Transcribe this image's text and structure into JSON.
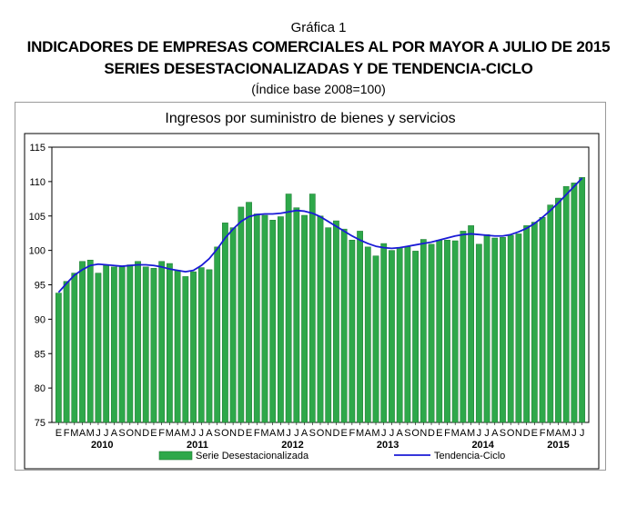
{
  "header": {
    "figure_label": "Gráfica 1",
    "title": "INDICADORES DE EMPRESAS COMERCIALES AL POR MAYOR A JULIO DE 2015",
    "subtitle": "SERIES DESESTACIONALIZADAS Y DE TENDENCIA-CICLO",
    "note": "(Índice base 2008=100)"
  },
  "chart_data": {
    "type": "bar",
    "title": "Ingresos por suministro de bienes y servicios",
    "ylim": [
      75,
      115
    ],
    "yticks": [
      75,
      80,
      85,
      90,
      95,
      100,
      105,
      110,
      115
    ],
    "grid": false,
    "legend_position": "bottom",
    "month_labels": [
      "E",
      "F",
      "M",
      "A",
      "M",
      "J",
      "J",
      "A",
      "S",
      "O",
      "N",
      "D"
    ],
    "years": [
      "2010",
      "2011",
      "2012",
      "2013",
      "2014",
      "2015"
    ],
    "bar_color": "#2ea84a",
    "line_color": "#1a1ad6",
    "categories": [
      "2010-01",
      "2010-02",
      "2010-03",
      "2010-04",
      "2010-05",
      "2010-06",
      "2010-07",
      "2010-08",
      "2010-09",
      "2010-10",
      "2010-11",
      "2010-12",
      "2011-01",
      "2011-02",
      "2011-03",
      "2011-04",
      "2011-05",
      "2011-06",
      "2011-07",
      "2011-08",
      "2011-09",
      "2011-10",
      "2011-11",
      "2011-12",
      "2012-01",
      "2012-02",
      "2012-03",
      "2012-04",
      "2012-05",
      "2012-06",
      "2012-07",
      "2012-08",
      "2012-09",
      "2012-10",
      "2012-11",
      "2012-12",
      "2013-01",
      "2013-02",
      "2013-03",
      "2013-04",
      "2013-05",
      "2013-06",
      "2013-07",
      "2013-08",
      "2013-09",
      "2013-10",
      "2013-11",
      "2013-12",
      "2014-01",
      "2014-02",
      "2014-03",
      "2014-04",
      "2014-05",
      "2014-06",
      "2014-07",
      "2014-08",
      "2014-09",
      "2014-10",
      "2014-11",
      "2014-12",
      "2015-01",
      "2015-02",
      "2015-03",
      "2015-04",
      "2015-05",
      "2015-06",
      "2015-07"
    ],
    "series": [
      {
        "name": "Serie Desestacionalizada",
        "type": "bar",
        "values": [
          93.8,
          95.5,
          96.7,
          98.4,
          98.6,
          96.7,
          97.8,
          97.6,
          97.6,
          97.9,
          98.4,
          97.6,
          97.4,
          98.4,
          98.1,
          97.1,
          96.2,
          96.9,
          97.5,
          97.2,
          100.5,
          104.0,
          103.3,
          106.3,
          107.0,
          105.3,
          105.1,
          104.4,
          104.9,
          108.2,
          106.2,
          105.1,
          108.2,
          105.0,
          103.3,
          104.3,
          103.1,
          101.5,
          102.8,
          100.5,
          99.2,
          101.0,
          100.0,
          100.4,
          100.5,
          99.9,
          101.6,
          100.9,
          101.5,
          101.5,
          101.4,
          102.8,
          103.6,
          100.9,
          102.3,
          101.8,
          101.9,
          102.2,
          102.4,
          103.6,
          104.1,
          104.8,
          106.6,
          107.6,
          109.3,
          109.8,
          110.6
        ]
      },
      {
        "name": "Tendencia-Ciclo",
        "type": "line",
        "values": [
          93.9,
          95.2,
          96.4,
          97.2,
          97.8,
          98.0,
          97.9,
          97.8,
          97.7,
          97.8,
          97.9,
          97.9,
          97.8,
          97.6,
          97.3,
          97.1,
          96.9,
          97.1,
          97.8,
          98.8,
          100.2,
          101.8,
          103.1,
          104.2,
          104.9,
          105.2,
          105.3,
          105.3,
          105.4,
          105.6,
          105.8,
          105.7,
          105.4,
          104.9,
          104.2,
          103.5,
          102.8,
          102.1,
          101.5,
          101.0,
          100.6,
          100.4,
          100.3,
          100.4,
          100.6,
          100.8,
          101.0,
          101.2,
          101.5,
          101.8,
          102.1,
          102.3,
          102.4,
          102.3,
          102.2,
          102.1,
          102.1,
          102.3,
          102.7,
          103.2,
          103.9,
          104.8,
          105.8,
          106.9,
          108.1,
          109.3,
          110.5
        ]
      }
    ]
  }
}
